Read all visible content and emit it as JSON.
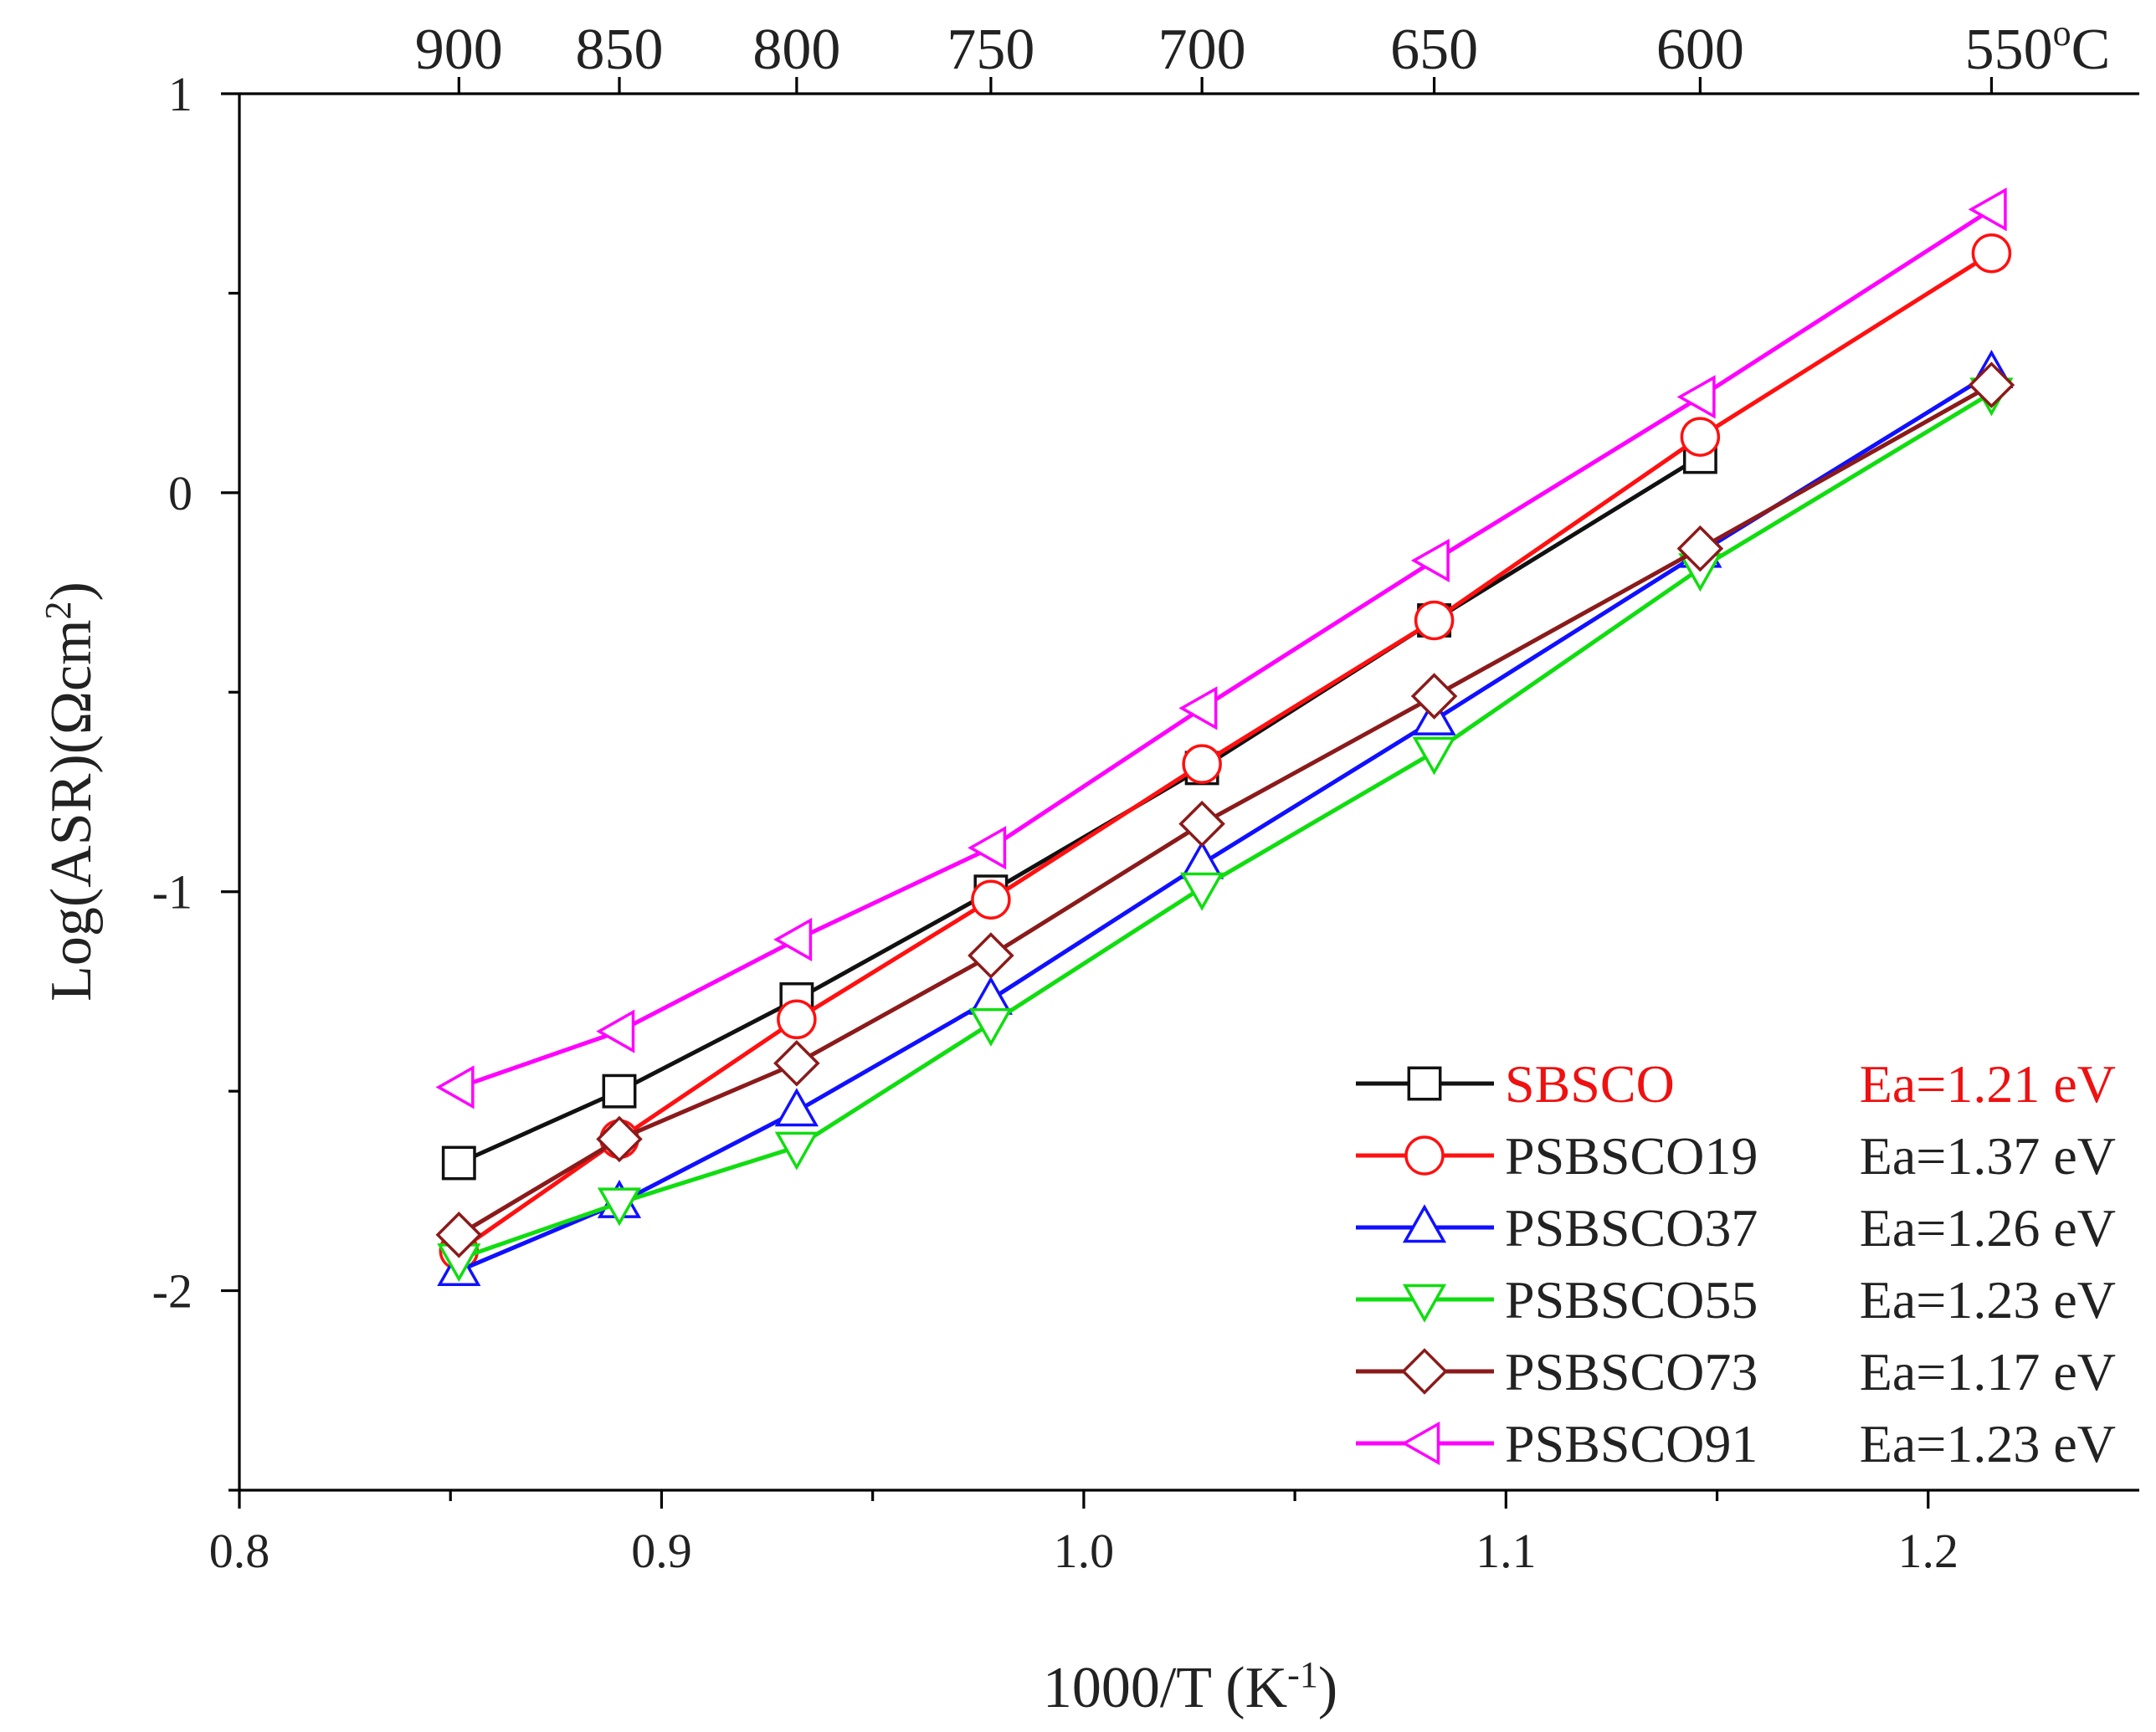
{
  "chart_data": {
    "type": "line",
    "title": "",
    "xlabel": "1000/T (K",
    "xlabel_sup": "-1",
    "xlabel_end": ")",
    "ylabel": "Log(ASR)(Ωcm",
    "ylabel_sup": "2",
    "ylabel_end": ")",
    "xlim": [
      0.8,
      1.25
    ],
    "ylim": [
      -2.5,
      1.0
    ],
    "x_ticks": [
      0.8,
      0.9,
      1.0,
      1.1,
      1.2
    ],
    "x_tick_labels": [
      "0.8",
      "0.9",
      "1.0",
      "1.1",
      "1.2"
    ],
    "x_minor_ticks": [
      0.85,
      0.95,
      1.05,
      1.15
    ],
    "y_ticks": [
      1,
      0,
      -1,
      -2
    ],
    "y_tick_labels": [
      "1",
      "0",
      "-1",
      "-2"
    ],
    "y_minor_ticks": [
      0.5,
      -0.5,
      -1.5,
      -2.5
    ],
    "top_axis": {
      "labels": [
        "900",
        "850",
        "800",
        "750",
        "700",
        "650",
        "600",
        "550"
      ],
      "last_label_suffix_sup": "o",
      "last_label_suffix": "C",
      "positions": [
        0.852,
        0.89,
        0.932,
        0.978,
        1.028,
        1.083,
        1.146,
        1.215
      ]
    },
    "legend": {
      "placement": "bottom-right"
    },
    "series": [
      {
        "name": "SBSCO",
        "ea": "Ea=1.21 eV",
        "color": "#111111",
        "label_color": "#ee1111",
        "marker": "square",
        "x": [
          0.852,
          0.89,
          0.932,
          0.978,
          1.028,
          1.083,
          1.146
        ],
        "y": [
          -1.68,
          -1.5,
          -1.27,
          -1.0,
          -0.69,
          -0.32,
          0.09
        ]
      },
      {
        "name": "PSBSCO19",
        "ea": "Ea=1.37 eV",
        "color": "#ff1010",
        "label_color": "#222222",
        "marker": "circle",
        "x": [
          0.852,
          0.89,
          0.932,
          0.978,
          1.028,
          1.083,
          1.146,
          1.215
        ],
        "y": [
          -1.9,
          -1.62,
          -1.32,
          -1.02,
          -0.68,
          -0.32,
          0.14,
          0.6
        ]
      },
      {
        "name": "PSBSCO37",
        "ea": "Ea=1.26 eV",
        "color": "#1010ff",
        "label_color": "#222222",
        "marker": "triangle-up",
        "x": [
          0.852,
          0.89,
          0.932,
          0.978,
          1.028,
          1.083,
          1.146,
          1.215
        ],
        "y": [
          -1.95,
          -1.78,
          -1.55,
          -1.27,
          -0.93,
          -0.57,
          -0.15,
          0.3
        ]
      },
      {
        "name": "PSBSCO55",
        "ea": "Ea=1.23 eV",
        "color": "#10dd10",
        "label_color": "#222222",
        "marker": "triangle-down",
        "x": [
          0.852,
          0.89,
          0.932,
          0.978,
          1.028,
          1.083,
          1.146,
          1.215
        ],
        "y": [
          -1.92,
          -1.78,
          -1.64,
          -1.33,
          -0.99,
          -0.65,
          -0.19,
          0.25
        ]
      },
      {
        "name": "PSBSCO73",
        "ea": "Ea=1.17 eV",
        "color": "#8b1a1a",
        "label_color": "#222222",
        "marker": "diamond",
        "x": [
          0.852,
          0.89,
          0.932,
          0.978,
          1.028,
          1.083,
          1.146,
          1.215
        ],
        "y": [
          -1.86,
          -1.62,
          -1.43,
          -1.16,
          -0.83,
          -0.51,
          -0.14,
          0.27
        ]
      },
      {
        "name": "PSBSCO91",
        "ea": "Ea=1.23 eV",
        "color": "#ff00ff",
        "label_color": "#222222",
        "marker": "triangle-left",
        "x": [
          0.852,
          0.89,
          0.932,
          0.978,
          1.028,
          1.083,
          1.146,
          1.215
        ],
        "y": [
          -1.49,
          -1.35,
          -1.12,
          -0.89,
          -0.54,
          -0.17,
          0.24,
          0.71
        ]
      }
    ]
  }
}
